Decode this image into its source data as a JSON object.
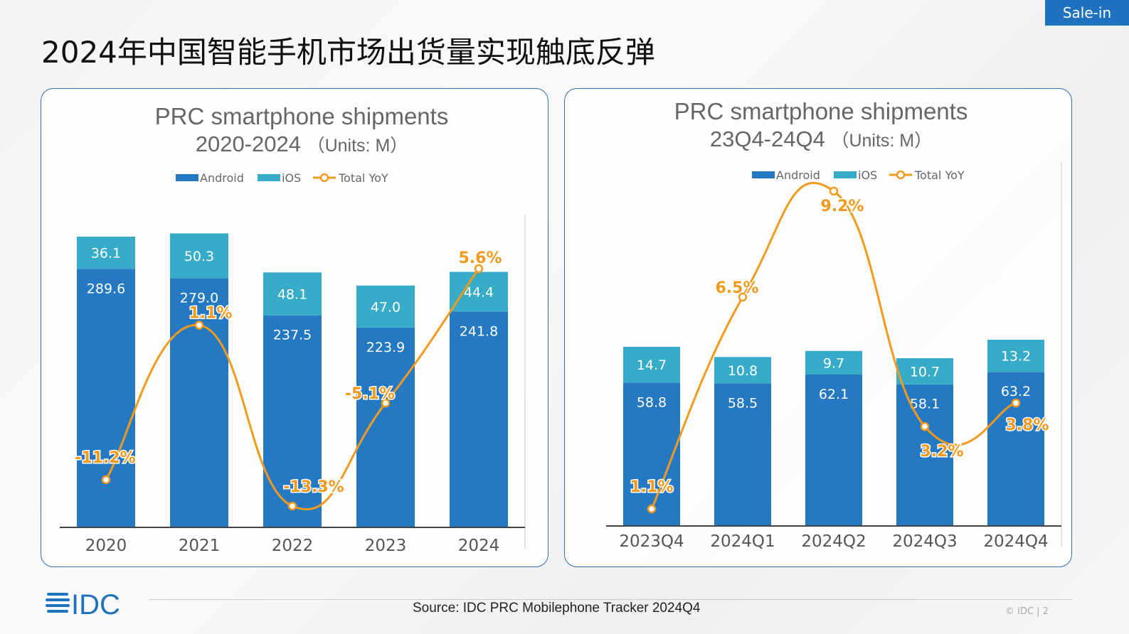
{
  "header": {
    "title": "2024年中国智能手机市场出货量实现触底反弹",
    "badge": "Sale-in"
  },
  "footer": {
    "source": "Source: IDC PRC Mobilephone Tracker 2024Q4",
    "copyright": "© IDC |",
    "page": "2",
    "logo": "IDC"
  },
  "colors": {
    "android": "#2479c2",
    "ios": "#36acc9",
    "yoy": "#f39a1e",
    "border": "#2f6fb5"
  },
  "chart_data": [
    {
      "type": "bar",
      "stacked": true,
      "title": "PRC smartphone shipments",
      "subtitle": "2020-2024",
      "units": "（Units: M）",
      "categories": [
        "2020",
        "2021",
        "2022",
        "2023",
        "2024"
      ],
      "series": [
        {
          "name": "Android",
          "values": [
            289.6,
            279.0,
            237.5,
            223.9,
            241.8
          ],
          "display": [
            "289.6",
            "279.0",
            "237.5",
            "223.9",
            "241.8"
          ]
        },
        {
          "name": "iOS",
          "values": [
            36.1,
            50.3,
            48.1,
            47.0,
            44.4
          ],
          "display": [
            "36.1",
            "50.3",
            "48.1",
            "47.0",
            "44.4"
          ]
        },
        {
          "name": "Total YoY",
          "type": "line",
          "axis": "secondary",
          "values": [
            -11.2,
            1.1,
            -13.3,
            -5.1,
            5.6
          ],
          "display": [
            "-11.2%",
            "1.1%",
            "-13.3%",
            "-5.1%",
            "5.6%"
          ]
        }
      ],
      "legend": "top"
    },
    {
      "type": "bar",
      "stacked": true,
      "title": "PRC smartphone shipments",
      "subtitle": "23Q4-24Q4",
      "units": "（Units: M）",
      "categories": [
        "2023Q4",
        "2024Q1",
        "2024Q2",
        "2024Q3",
        "2024Q4"
      ],
      "series": [
        {
          "name": "Android",
          "values": [
            58.8,
            58.5,
            62.1,
            58.1,
            63.2
          ],
          "display": [
            "58.8",
            "58.5",
            "62.1",
            "58.1",
            "63.2"
          ]
        },
        {
          "name": "iOS",
          "values": [
            14.7,
            10.8,
            9.7,
            10.7,
            13.2
          ],
          "display": [
            "14.7",
            "10.8",
            "9.7",
            "10.7",
            "13.2"
          ]
        },
        {
          "name": "Total YoY",
          "type": "line",
          "axis": "secondary",
          "values": [
            1.1,
            6.5,
            9.2,
            3.2,
            3.8
          ],
          "display": [
            "1.1%",
            "6.5%",
            "9.2%",
            "3.2%",
            "3.8%"
          ]
        }
      ],
      "legend": "top"
    }
  ]
}
